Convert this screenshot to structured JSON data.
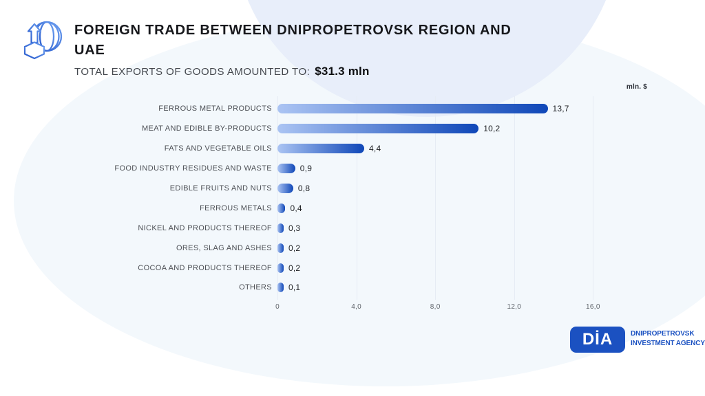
{
  "header": {
    "title_line1": "FOREIGN TRADE BETWEEN DNIPROPETROVSK REGION AND",
    "title_line2": "UAE",
    "subtitle_prefix": "TOTAL EXPORTS OF GOODS AMOUNTED TO:",
    "subtitle_value": "$31.3 mln"
  },
  "chart_data": {
    "type": "bar",
    "orientation": "horizontal",
    "unit_label": "mln. $",
    "categories": [
      "FERROUS METAL PRODUCTS",
      "MEAT AND EDIBLE BY-PRODUCTS",
      "FATS AND VEGETABLE OILS",
      "FOOD INDUSTRY RESIDUES AND WASTE",
      "EDIBLE FRUITS AND NUTS",
      "FERROUS METALS",
      "NICKEL AND PRODUCTS THEREOF",
      "ORES, SLAG AND ASHES",
      "COCOA AND PRODUCTS THEREOF",
      "OTHERS"
    ],
    "values": [
      13.7,
      10.2,
      4.4,
      0.9,
      0.8,
      0.4,
      0.3,
      0.2,
      0.2,
      0.1
    ],
    "value_labels": [
      "13,7",
      "10,2",
      "4,4",
      "0,9",
      "0,8",
      "0,4",
      "0,3",
      "0,2",
      "0,2",
      "0,1"
    ],
    "tick_values": [
      0,
      4,
      8,
      12,
      16
    ],
    "tick_labels": [
      "0",
      "4,0",
      "8,0",
      "12,0",
      "16,0"
    ],
    "xlim": [
      0,
      16
    ],
    "grid": true,
    "legend": false,
    "bar_gradient": [
      "#abc4f3",
      "#0f47b8"
    ]
  },
  "footer_logo": {
    "abbr": "DİA",
    "line1": "DNIPROPETROVSK",
    "line2": "INVESTMENT AGENCY"
  },
  "colors": {
    "accent_blue": "#1b51c1",
    "top_blob": "#e8eefa",
    "main_blob": "#f3f8fc",
    "gridline": "#e6ecf4",
    "title_text": "#17181c"
  }
}
